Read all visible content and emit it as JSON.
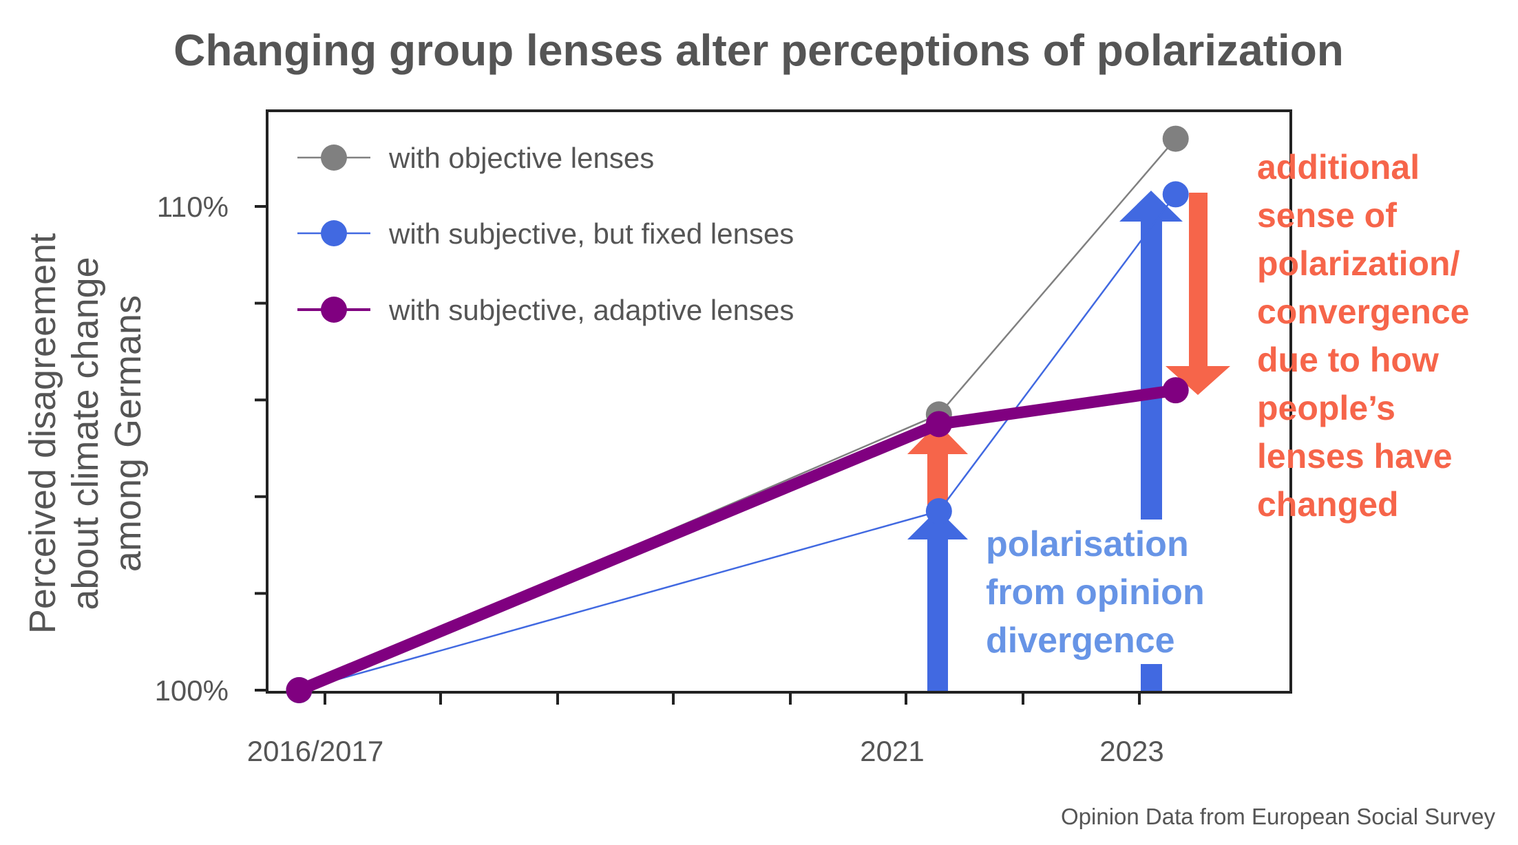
{
  "chart_data": {
    "type": "line",
    "title": "Changing group lenses alter perceptions of polarization",
    "ylabel_lines": [
      "Perceived disagreement",
      "about climate change",
      "among Germans"
    ],
    "x_labels": [
      "2016/2017",
      "2021",
      "2023"
    ],
    "x": [
      2016.75,
      2021.75,
      2023.6
    ],
    "xlim": [
      2016.5,
      2024.5
    ],
    "ylim": [
      100,
      112
    ],
    "y_ticks": [
      100,
      102,
      104,
      106,
      108,
      110
    ],
    "y_tick_labels": {
      "100": "100%",
      "110": "110%"
    },
    "series": [
      {
        "name": "with objective lenses",
        "color": "#808080",
        "values": [
          100,
          105.7,
          111.4
        ],
        "style": "thin"
      },
      {
        "name": "with subjective, but fixed lenses",
        "color": "#4169e1",
        "values": [
          100,
          103.7,
          110.25
        ],
        "style": "thin"
      },
      {
        "name": "with subjective, adaptive lenses",
        "color": "#800080",
        "values": [
          100,
          105.5,
          106.2
        ],
        "style": "thick"
      }
    ],
    "legend_position": "top-left",
    "grid": false,
    "annotations": {
      "red_lines": [
        "additional",
        "sense of",
        "polarization/",
        "convergence",
        "due to how",
        "people’s",
        "lenses have",
        "changed"
      ],
      "blue_lines": [
        "polarisation",
        "from opinion",
        "divergence"
      ]
    },
    "arrow_colors": {
      "blue": "#4169e1",
      "red": "#f6654a"
    }
  },
  "source": "Opinion Data from European Social Survey"
}
